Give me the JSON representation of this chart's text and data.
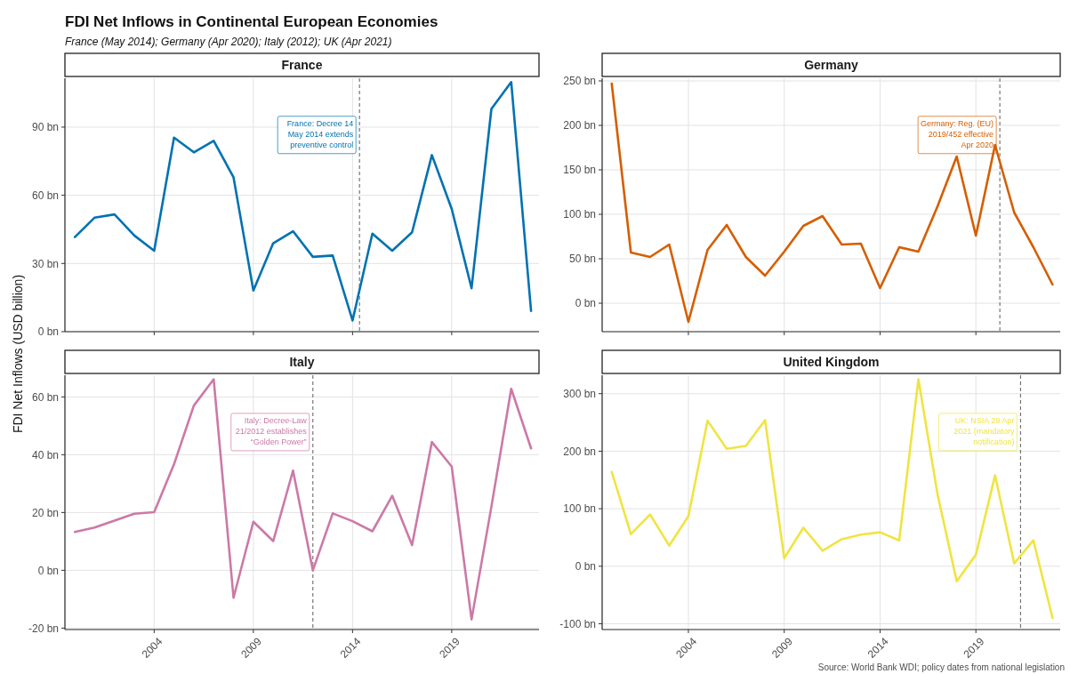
{
  "chart_data": [
    {
      "type": "other",
      "title": "FDI Net Inflows in Continental European Economies",
      "subtitle": "France (May 2014); Germany (Apr 2020); Italy (2012); UK (Apr 2021)"
    },
    {
      "type": "line",
      "title": "France",
      "ylabel": "FDI Net Inflows (USD billion)",
      "x": [
        2000,
        2001,
        2002,
        2003,
        2004,
        2005,
        2006,
        2007,
        2008,
        2009,
        2010,
        2011,
        2012,
        2013,
        2014,
        2015,
        2016,
        2017,
        2018,
        2019,
        2020,
        2021,
        2022,
        2023
      ],
      "series": [
        {
          "color": "#0072b2",
          "values": [
            41.6,
            50.2,
            51.6,
            42.3,
            35.6,
            85.4,
            78.9,
            84.0,
            67.9,
            18.1,
            38.9,
            44.2,
            32.9,
            33.5,
            4.9,
            43.1,
            35.6,
            43.7,
            77.7,
            54.0,
            19.1,
            98.0,
            109.8,
            9.1
          ]
        }
      ],
      "xlim": [
        1999.5,
        2023.4
      ],
      "xticks": [
        2004,
        2009,
        2014,
        2019
      ],
      "ylim": [
        0,
        111.5
      ],
      "yticks": [
        {
          "value": 0,
          "label": "0 bn"
        },
        {
          "value": 30,
          "label": "30 bn"
        },
        {
          "value": 60,
          "label": "60 bn"
        },
        {
          "value": 90,
          "label": "90 bn"
        }
      ],
      "ref_lines": [
        {
          "axis": "x",
          "value": 2014.35,
          "label": "France: Decree 14 May 2014 extends preventive control",
          "line_style": "dashed"
        }
      ],
      "grid": true,
      "tick_labels": "y"
    },
    {
      "type": "line",
      "title": "Germany",
      "x": [
        2000,
        2001,
        2002,
        2003,
        2004,
        2005,
        2006,
        2007,
        2008,
        2009,
        2010,
        2011,
        2012,
        2013,
        2014,
        2015,
        2016,
        2017,
        2018,
        2019,
        2020,
        2021,
        2022,
        2023
      ],
      "series": [
        {
          "color": "#d55e00",
          "values": [
            247,
            57,
            52,
            66,
            -21,
            60,
            88,
            52,
            31,
            58,
            87,
            98,
            66,
            67,
            17,
            63,
            58,
            109,
            165,
            76,
            178,
            102,
            63,
            21
          ]
        }
      ],
      "xlim": [
        1999.5,
        2023.4
      ],
      "xticks": [
        2004,
        2009,
        2014,
        2019
      ],
      "ylim": [
        -32,
        253
      ],
      "yticks": [
        {
          "value": 0,
          "label": "0 bn"
        },
        {
          "value": 50,
          "label": "50 bn"
        },
        {
          "value": 100,
          "label": "100 bn"
        },
        {
          "value": 150,
          "label": "150 bn"
        },
        {
          "value": 200,
          "label": "200 bn"
        },
        {
          "value": 250,
          "label": "250 bn"
        }
      ],
      "ref_lines": [
        {
          "axis": "x",
          "value": 2020.25,
          "label": "Germany: Reg. (EU) 2019/452 effective Apr 2020",
          "line_style": "dashed"
        }
      ],
      "grid": true,
      "tick_labels": "y"
    },
    {
      "type": "line",
      "title": "Italy",
      "x": [
        2000,
        2001,
        2002,
        2003,
        2004,
        2005,
        2006,
        2007,
        2008,
        2009,
        2010,
        2011,
        2012,
        2013,
        2014,
        2015,
        2016,
        2017,
        2018,
        2019,
        2020,
        2021,
        2022,
        2023
      ],
      "series": [
        {
          "color": "#cc79a7",
          "values": [
            13.3,
            14.8,
            17.2,
            19.6,
            20.1,
            36.7,
            57,
            66.1,
            -9.5,
            16.8,
            10.1,
            34.5,
            0,
            19.7,
            17,
            13.5,
            25.8,
            8.7,
            44.4,
            35.9,
            -17,
            22,
            62.8,
            42.2
          ]
        }
      ],
      "xlim": [
        1999.5,
        2023.4
      ],
      "xticks": [
        2004,
        2009,
        2014,
        2019
      ],
      "ylim": [
        -20.5,
        67.5
      ],
      "yticks": [
        {
          "value": -20,
          "label": "-20 bn"
        },
        {
          "value": 0,
          "label": "0 bn"
        },
        {
          "value": 20,
          "label": "20 bn"
        },
        {
          "value": 40,
          "label": "40 bn"
        },
        {
          "value": 60,
          "label": "60 bn"
        }
      ],
      "ref_lines": [
        {
          "axis": "x",
          "value": 2012,
          "label": "Italy: Decree-Law 21/2012 establishes “Golden Power”",
          "line_style": "dashed"
        }
      ],
      "grid": true
    },
    {
      "type": "line",
      "title": "United Kingdom",
      "x": [
        2000,
        2001,
        2002,
        2003,
        2004,
        2005,
        2006,
        2007,
        2008,
        2009,
        2010,
        2011,
        2012,
        2013,
        2014,
        2015,
        2016,
        2017,
        2018,
        2019,
        2020,
        2021,
        2022,
        2023
      ],
      "series": [
        {
          "color": "#f0e442",
          "values": [
            164,
            56,
            90,
            36,
            87,
            253,
            204,
            209,
            254,
            14,
            67,
            27,
            47,
            55,
            59,
            45,
            325,
            125,
            -26,
            20,
            158,
            5,
            45,
            -90
          ]
        }
      ],
      "xlim": [
        1999.5,
        2023.4
      ],
      "xticks": [
        2004,
        2009,
        2014,
        2019
      ],
      "ylim": [
        -110,
        332
      ],
      "yticks": [
        {
          "value": -100,
          "label": "-100 bn"
        },
        {
          "value": 0,
          "label": "0 bn"
        },
        {
          "value": 100,
          "label": "100 bn"
        },
        {
          "value": 200,
          "label": "200 bn"
        },
        {
          "value": 300,
          "label": "300 bn"
        }
      ],
      "ref_lines": [
        {
          "axis": "x",
          "value": 2021.33,
          "label": "UK: NSIA 29 Apr 2021 (mandatory notification)",
          "line_style": "dashed"
        }
      ],
      "grid": true,
      "annotations": [
        "Source: World Bank WDI; policy dates from national legislation"
      ]
    }
  ]
}
